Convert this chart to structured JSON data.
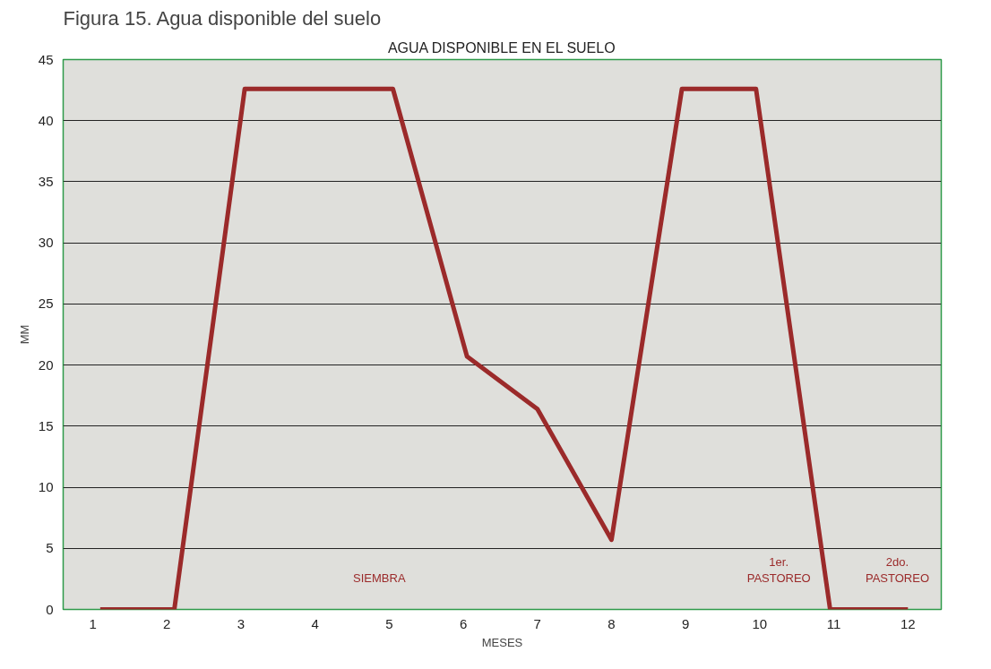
{
  "chart_data": {
    "type": "line",
    "title": "Figura 15. Agua disponible del suelo",
    "subtitle": "AGUA DISPONIBLE EN EL SUELO",
    "xlabel": "MESES",
    "ylabel": "MM",
    "x": [
      1.1,
      2.1,
      3.05,
      5.05,
      6.05,
      7.0,
      8.0,
      8.95,
      9.95,
      10.95,
      12.0
    ],
    "series": [
      {
        "color": "#9b2a2a",
        "values": [
          0,
          0,
          42.6,
          42.6,
          20.7,
          16.4,
          5.7,
          42.6,
          42.6,
          0,
          0
        ]
      }
    ],
    "xlim": [
      0.6,
      12.45
    ],
    "xticks": [
      1,
      2,
      3,
      4,
      5,
      6,
      7,
      8,
      9,
      10,
      11,
      12
    ],
    "ylim": [
      0,
      45
    ],
    "yticks": [
      0,
      5,
      10,
      15,
      20,
      25,
      30,
      35,
      40,
      45
    ],
    "grid": "y",
    "marker": "none",
    "line_style": "solid",
    "annotations": [
      "SIEMBRA",
      "1er.\nPASTOREO",
      "2do.\nPASTOREO"
    ]
  }
}
